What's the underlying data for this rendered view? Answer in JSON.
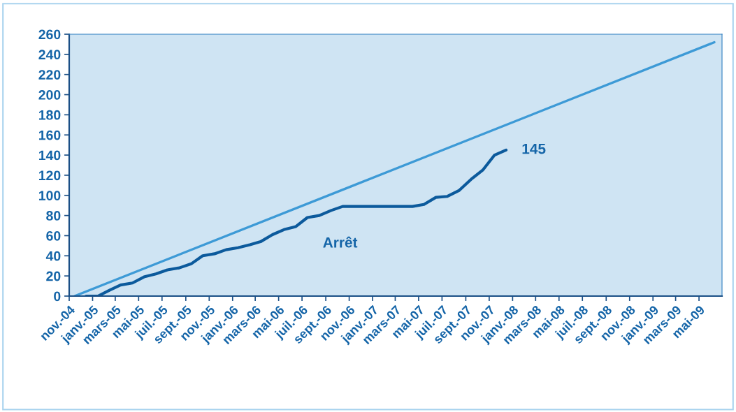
{
  "chart_data": {
    "type": "line",
    "annotations": [
      "Arrêt"
    ],
    "xlim": [
      "2004-11-01",
      "2009-06-30"
    ],
    "xticks": [
      {
        "value": "2004-11-01",
        "label": "nov.-04"
      },
      {
        "value": "2005-01-01",
        "label": "janv.-05"
      },
      {
        "value": "2005-03-01",
        "label": "mars-05"
      },
      {
        "value": "2005-05-01",
        "label": "mai-05"
      },
      {
        "value": "2005-07-01",
        "label": "juil.-05"
      },
      {
        "value": "2005-09-01",
        "label": "sept.-05"
      },
      {
        "value": "2005-11-01",
        "label": "nov.-05"
      },
      {
        "value": "2006-01-01",
        "label": "janv.-06"
      },
      {
        "value": "2006-03-01",
        "label": "mars-06"
      },
      {
        "value": "2006-05-01",
        "label": "mai-06"
      },
      {
        "value": "2006-07-01",
        "label": "juil.-06"
      },
      {
        "value": "2006-09-01",
        "label": "sept.-06"
      },
      {
        "value": "2006-11-01",
        "label": "nov.-06"
      },
      {
        "value": "2007-01-01",
        "label": "janv.-07"
      },
      {
        "value": "2007-03-01",
        "label": "mars-07"
      },
      {
        "value": "2007-05-01",
        "label": "mai-07"
      },
      {
        "value": "2007-07-01",
        "label": "juil.-07"
      },
      {
        "value": "2007-09-01",
        "label": "sept.-07"
      },
      {
        "value": "2007-11-01",
        "label": "nov.-07"
      },
      {
        "value": "2008-01-01",
        "label": "janv.-08"
      },
      {
        "value": "2008-03-01",
        "label": "mars-08"
      },
      {
        "value": "2008-05-01",
        "label": "mai-08"
      },
      {
        "value": "2008-07-01",
        "label": "juil.-08"
      },
      {
        "value": "2008-09-01",
        "label": "sept.-08"
      },
      {
        "value": "2008-11-01",
        "label": "nov.-08"
      },
      {
        "value": "2009-01-01",
        "label": "janv.-09"
      },
      {
        "value": "2009-03-01",
        "label": "mars-09"
      },
      {
        "value": "2009-05-01",
        "label": "mai-09"
      }
    ],
    "ylim": [
      0,
      260
    ],
    "yticks": [
      0,
      20,
      40,
      60,
      80,
      100,
      120,
      140,
      160,
      180,
      200,
      220,
      240,
      260
    ],
    "grid": false,
    "legend": false,
    "marker": "none",
    "line_style": "solid",
    "series": [
      {
        "color": "#3d9ad6",
        "x": [
          "2004-11-15",
          "2009-06-10"
        ],
        "values": [
          0,
          252
        ]
      },
      {
        "color": "#0c5a9c",
        "x": [
          "2004-12-15",
          "2005-01-15",
          "2005-02-15",
          "2005-03-15",
          "2005-04-15",
          "2005-05-15",
          "2005-06-15",
          "2005-07-15",
          "2005-08-15",
          "2005-09-15",
          "2005-10-15",
          "2005-11-15",
          "2005-12-15",
          "2006-01-15",
          "2006-02-15",
          "2006-03-15",
          "2006-04-15",
          "2006-05-15",
          "2006-06-15",
          "2006-07-15",
          "2006-08-15",
          "2006-09-15",
          "2006-10-15",
          "2006-11-15",
          "2006-12-15",
          "2007-01-15",
          "2007-02-15",
          "2007-03-15",
          "2007-04-15",
          "2007-05-15",
          "2007-06-15",
          "2007-07-15",
          "2007-08-15",
          "2007-09-15",
          "2007-10-15",
          "2007-11-15",
          "2007-12-15"
        ],
        "values": [
          0,
          0,
          6,
          11,
          13,
          19,
          22,
          26,
          28,
          32,
          40,
          42,
          46,
          48,
          51,
          54,
          61,
          66,
          69,
          78,
          80,
          85,
          89,
          89,
          89,
          89,
          89,
          89,
          89,
          91,
          98,
          99,
          105,
          116,
          125,
          140,
          145
        ],
        "value_labels": [
          null,
          null,
          null,
          null,
          null,
          null,
          null,
          null,
          null,
          null,
          null,
          null,
          null,
          null,
          null,
          null,
          null,
          null,
          null,
          null,
          null,
          null,
          null,
          null,
          null,
          null,
          null,
          null,
          null,
          null,
          null,
          null,
          null,
          null,
          null,
          null,
          "145"
        ]
      }
    ]
  }
}
